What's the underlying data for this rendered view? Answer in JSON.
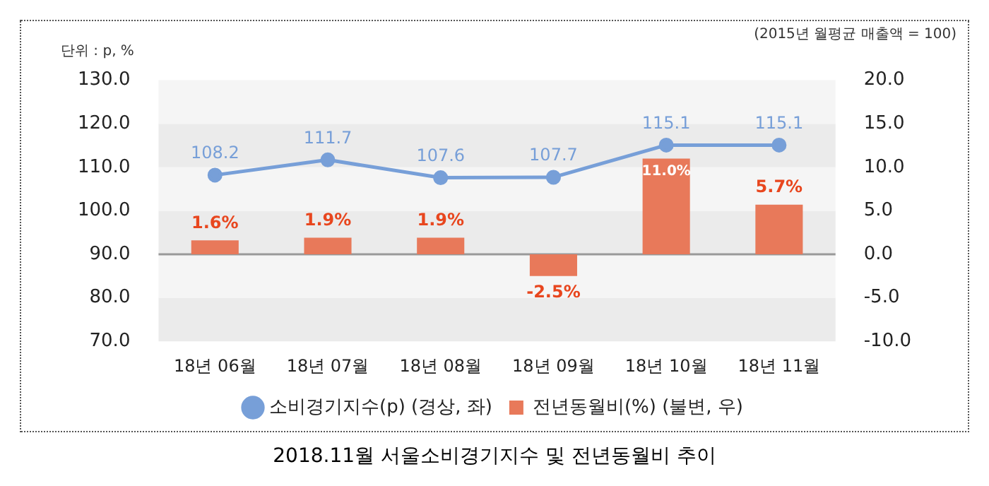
{
  "chart_data": {
    "type": "bar",
    "title": "2018.11월 서울소비경기지수 및 전년동월비 추이",
    "annotations": [
      "(2015년 월평균 매출액 = 100)",
      "단위 : p, %"
    ],
    "categories": [
      "18년 06월",
      "18년 07월",
      "18년 08월",
      "18년 09월",
      "18년 10월",
      "18년 11월"
    ],
    "series": [
      {
        "name": "소비경기지수(p) (경상, 좌)",
        "type": "line",
        "color": "#779fd8",
        "values": [
          108.2,
          111.7,
          107.6,
          107.7,
          115.1,
          115.1
        ],
        "value_labels": [
          "108.2",
          "111.7",
          "107.6",
          "107.7",
          "115.1",
          "115.1"
        ]
      },
      {
        "name": "전년동월비(%) (불변, 우)",
        "axis": "y2",
        "color": "#e8795a",
        "values": [
          1.6,
          1.9,
          1.9,
          -2.5,
          11.0,
          5.7
        ],
        "value_labels": [
          "1.6%",
          "1.9%",
          "1.9%",
          "-2.5%",
          "11.0%",
          "5.7%"
        ]
      }
    ],
    "ylim": [
      70,
      130
    ],
    "yticks": [
      {
        "value": 70,
        "label": "70.0"
      },
      {
        "value": 80,
        "label": "80.0"
      },
      {
        "value": 90,
        "label": "90.0"
      },
      {
        "value": 100,
        "label": "100.0"
      },
      {
        "value": 110,
        "label": "110.0"
      },
      {
        "value": 120,
        "label": "120.0"
      },
      {
        "value": 130,
        "label": "130.0"
      }
    ],
    "y2lim": [
      -10,
      20
    ],
    "y2ticks": [
      {
        "value": -10,
        "label": "-10.0"
      },
      {
        "value": -5,
        "label": "-5.0"
      },
      {
        "value": 0,
        "label": "0.0"
      },
      {
        "value": 5,
        "label": "5.0"
      },
      {
        "value": 10,
        "label": "10.0"
      },
      {
        "value": 15,
        "label": "15.0"
      },
      {
        "value": 20,
        "label": "20.0"
      }
    ],
    "grid": "y",
    "legend": "bottom",
    "marker": "circle",
    "line_style": "solid"
  }
}
